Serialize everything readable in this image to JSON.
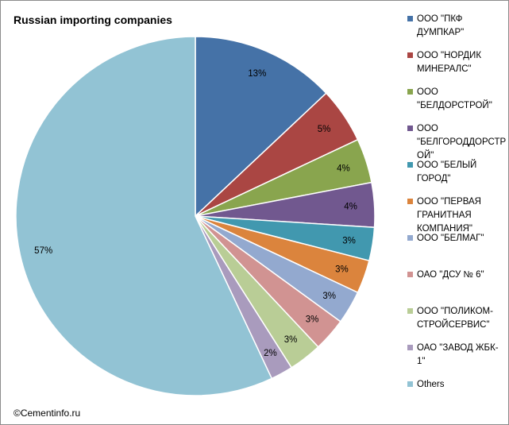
{
  "chart_data": {
    "type": "pie",
    "title": "Russian importing companies",
    "legend_position": "right",
    "slices": [
      {
        "label": "ООО \"ПКФ ДУМПКАР\"",
        "value": 13,
        "display": "13%",
        "color": "#4572A7"
      },
      {
        "label": "ООО \"НОРДИК МИНЕРАЛС\"",
        "value": 5,
        "display": "5%",
        "color": "#AA4643"
      },
      {
        "label": "ООО \"БЕЛДОРСТРОЙ\"",
        "value": 4,
        "display": "4%",
        "color": "#89A54E"
      },
      {
        "label": "ООО \"БЕЛГОРОДДОРСТРОЙ\"",
        "value": 4,
        "display": "4%",
        "color": "#71588F"
      },
      {
        "label": "ООО \"БЕЛЫЙ ГОРОД\"",
        "value": 3,
        "display": "3%",
        "color": "#4198AF"
      },
      {
        "label": "ООО \"ПЕРВАЯ ГРАНИТНАЯ КОМПАНИЯ\"",
        "value": 3,
        "display": "3%",
        "color": "#DB843D"
      },
      {
        "label": "ООО \"БЕЛМАГ\"",
        "value": 3,
        "display": "3%",
        "color": "#93A9CF"
      },
      {
        "label": "ОАО \"ДСУ № 6\"",
        "value": 3,
        "display": "3%",
        "color": "#D19392"
      },
      {
        "label": "ООО \"ПОЛИКОМ-СТРОЙСЕРВИС\"",
        "value": 3,
        "display": "3%",
        "color": "#B9CD96"
      },
      {
        "label": "ОАО \"ЗАВОД ЖБК-1\"",
        "value": 2,
        "display": "2%",
        "color": "#A99BBD"
      },
      {
        "label": "Others",
        "value": 57,
        "display": "57%",
        "color": "#92C3D4"
      }
    ]
  },
  "legend_lines": [
    "ООО \"ПКФ\nДУМПКАР\"",
    "ООО \"НОРДИК\nМИНЕРАЛС\"",
    "ООО\n\"БЕЛДОРСТРОЙ\"",
    "ООО\n\"БЕЛГОРОДДОРСТР\nОЙ\"",
    "ООО \"БЕЛЫЙ\nГОРОД\"",
    "ООО \"ПЕРВАЯ\nГРАНИТНАЯ\nКОМПАНИЯ\"",
    "ООО \"БЕЛМАГ\"",
    "ОАО \"ДСУ № 6\"",
    "ООО \"ПОЛИКОМ-\nСТРОЙСЕРВИС\"",
    "ОАО \"ЗАВОД ЖБК-\n1\"",
    "Others"
  ],
  "credit": "©Cementinfo.ru"
}
